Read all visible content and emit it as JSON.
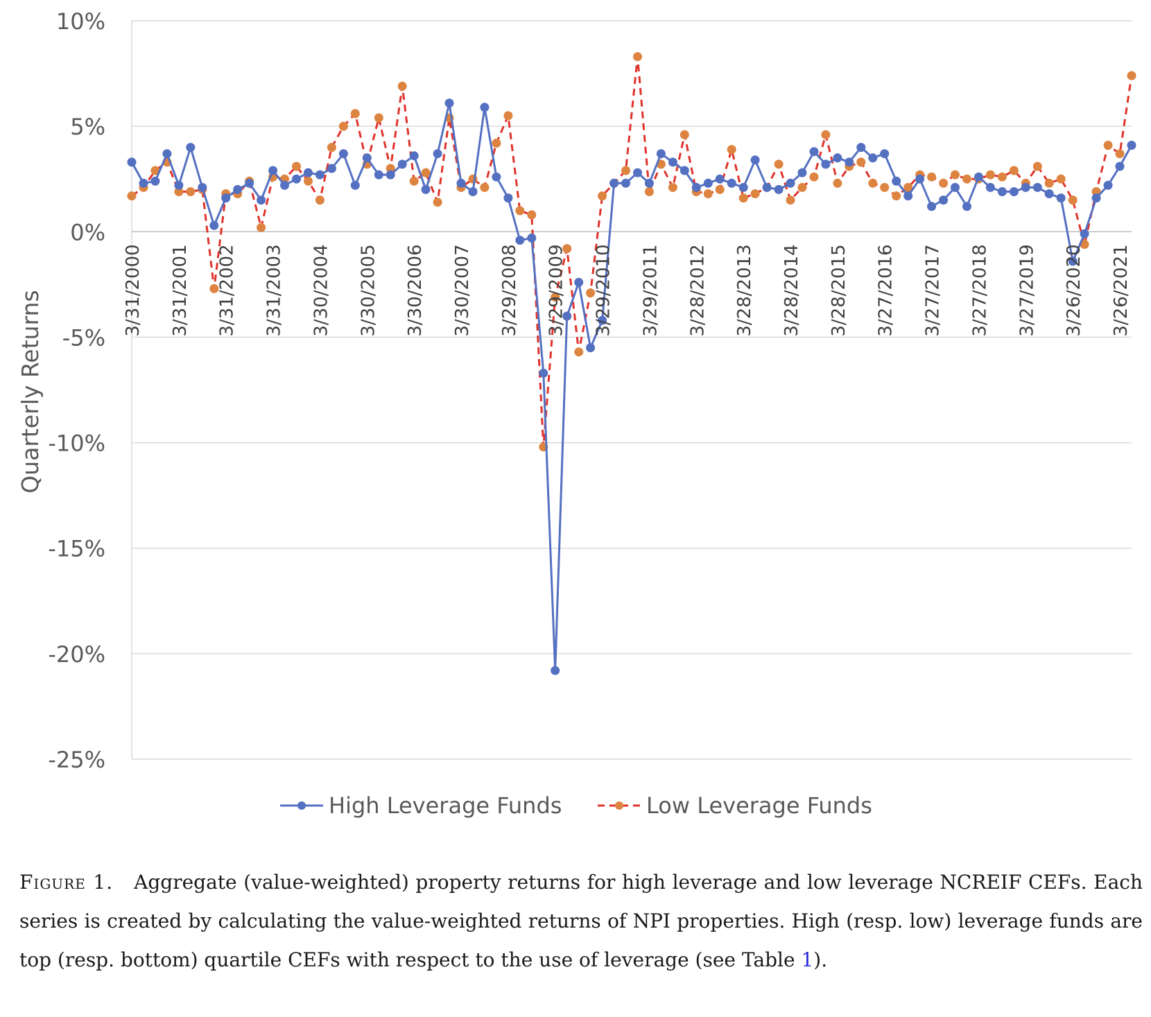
{
  "chart_data": {
    "type": "line",
    "ylabel": "Quarterly Returns",
    "xlabel": "",
    "ylim": [
      -25,
      10
    ],
    "y_ticks": [
      10,
      5,
      0,
      -5,
      -10,
      -15,
      -20,
      -25
    ],
    "y_tick_suffix": "%",
    "grid": "horizontal",
    "legend_position": "bottom",
    "x_tick_labels": [
      "3/31/2000",
      "3/31/2001",
      "3/31/2002",
      "3/31/2003",
      "3/30/2004",
      "3/30/2005",
      "3/30/2006",
      "3/30/2007",
      "3/29/2008",
      "3/29/2009",
      "3/29/2010",
      "3/29/2011",
      "3/28/2012",
      "3/28/2013",
      "3/28/2014",
      "3/28/2015",
      "3/27/2016",
      "3/27/2017",
      "3/27/2018",
      "3/27/2019",
      "3/26/2020",
      "3/26/2021"
    ],
    "x_tick_every": 4,
    "series": [
      {
        "name": "High Leverage Funds",
        "color": "#5470c1",
        "style": "solid",
        "values": [
          3.3,
          2.3,
          2.4,
          3.7,
          2.2,
          4.0,
          2.1,
          0.3,
          1.6,
          2.0,
          2.3,
          1.5,
          2.9,
          2.2,
          2.5,
          2.8,
          2.7,
          3.0,
          3.7,
          2.2,
          3.5,
          2.7,
          2.7,
          3.2,
          3.6,
          2.0,
          3.7,
          6.1,
          2.3,
          1.9,
          5.9,
          2.6,
          1.6,
          -0.4,
          -0.3,
          -6.7,
          -20.8,
          -4.0,
          -2.4,
          -5.5,
          -4.2,
          2.3,
          2.3,
          2.8,
          2.3,
          3.7,
          3.3,
          2.9,
          2.1,
          2.3,
          2.5,
          2.3,
          2.1,
          3.4,
          2.1,
          2.0,
          2.3,
          2.8,
          3.8,
          3.2,
          3.5,
          3.3,
          4.0,
          3.5,
          3.7,
          2.4,
          1.7,
          2.5,
          1.2,
          1.5,
          2.1,
          1.2,
          2.6,
          2.1,
          1.9,
          1.9,
          2.1,
          2.1,
          1.8,
          1.6,
          -1.4,
          -0.1,
          1.6,
          2.2,
          3.1,
          4.1
        ]
      },
      {
        "name": "Low Leverage Funds",
        "color": "#e0332c",
        "marker_color": "#dd8440",
        "style": "dashed",
        "values": [
          1.7,
          2.1,
          2.9,
          3.3,
          1.9,
          1.9,
          2.0,
          -2.7,
          1.8,
          1.8,
          2.4,
          0.2,
          2.6,
          2.5,
          3.1,
          2.4,
          1.5,
          4.0,
          5.0,
          5.6,
          3.2,
          5.4,
          3.0,
          6.9,
          2.4,
          2.8,
          1.4,
          5.4,
          2.1,
          2.5,
          2.1,
          4.2,
          5.5,
          1.0,
          0.8,
          -10.2,
          -3.1,
          -0.8,
          -5.7,
          -2.9,
          1.7,
          2.3,
          2.9,
          8.3,
          1.9,
          3.2,
          2.1,
          4.6,
          1.9,
          1.8,
          2.0,
          3.9,
          1.6,
          1.8,
          2.1,
          3.2,
          1.5,
          2.1,
          2.6,
          4.6,
          2.3,
          3.1,
          3.3,
          2.3,
          2.1,
          1.7,
          2.1,
          2.7,
          2.6,
          2.3,
          2.7,
          2.5,
          2.5,
          2.7,
          2.6,
          2.9,
          2.3,
          3.1,
          2.3,
          2.5,
          1.5,
          -0.6,
          1.9,
          4.1,
          3.7,
          7.4
        ]
      }
    ]
  },
  "caption": {
    "label": "Figure 1.",
    "text": "Aggregate (value-weighted) property returns for high leverage and low leverage NCREIF CEFs. Each series is created by calculating the value-weighted returns of NPI properties. High (resp. low) leverage funds are top (resp. bottom) quartile CEFs with respect to the use of leverage (see Table",
    "ref": "1",
    "tail": ")."
  }
}
